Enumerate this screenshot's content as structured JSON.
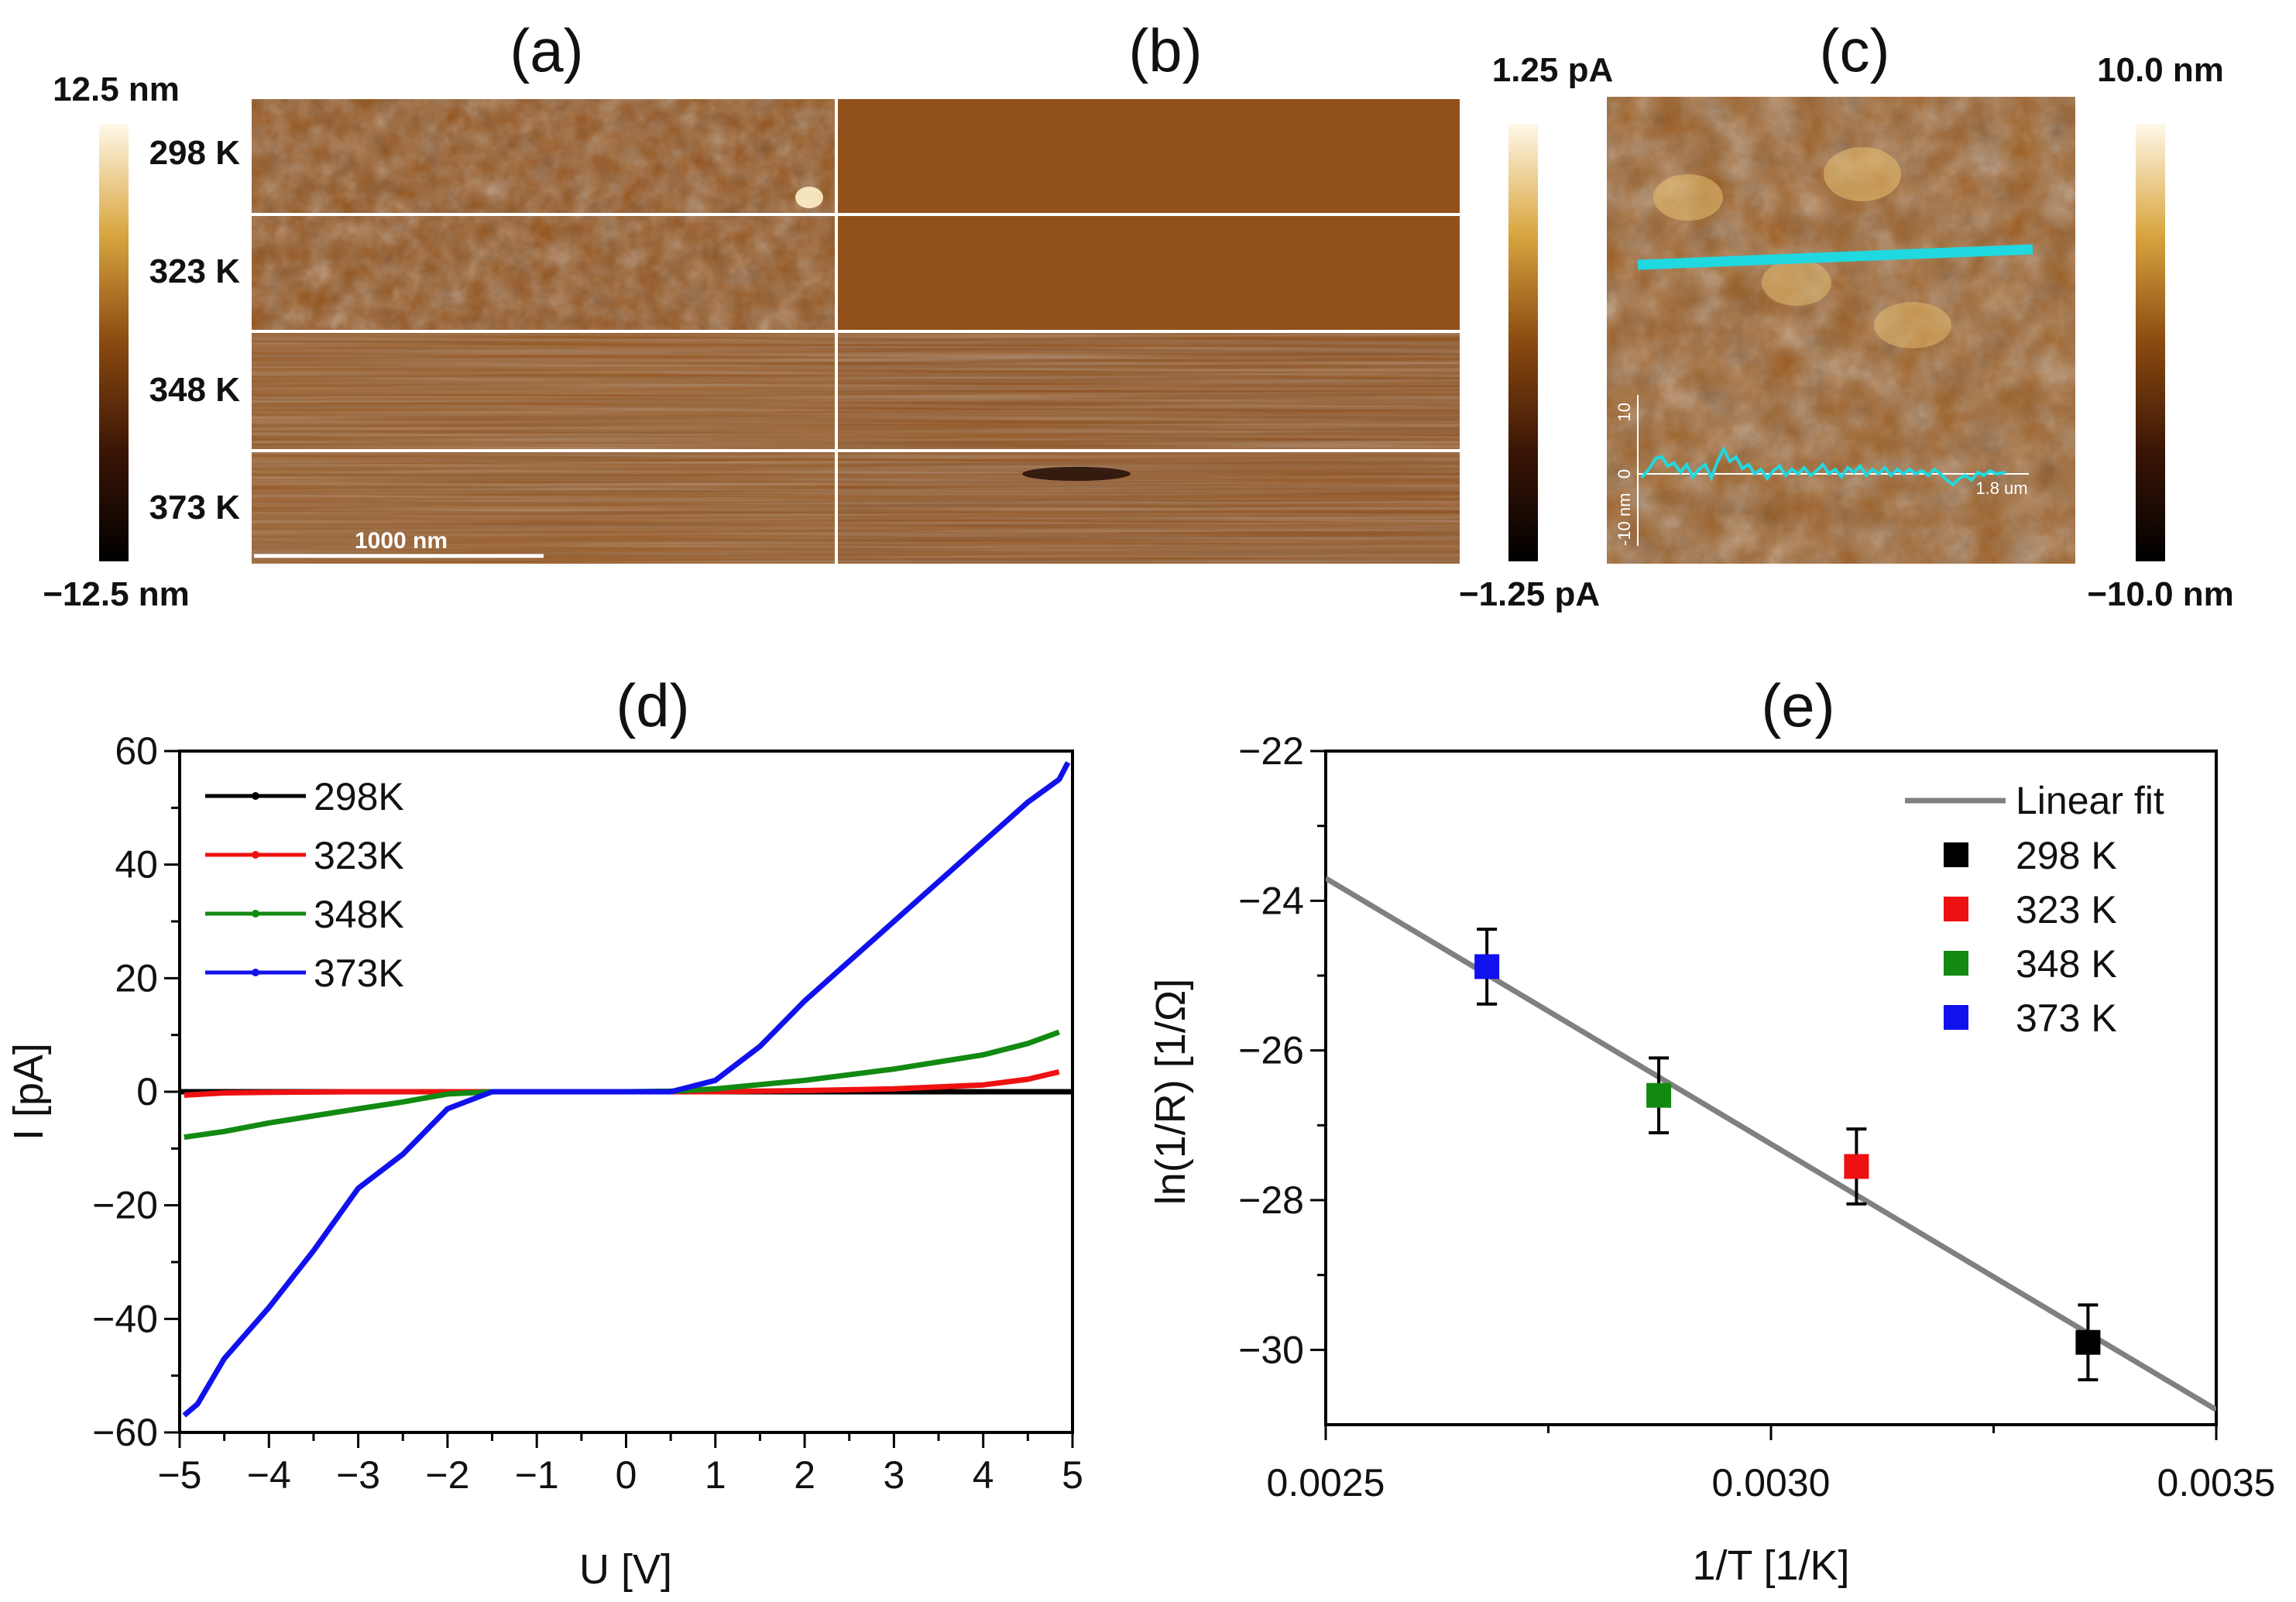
{
  "panels": {
    "a": {
      "label": "(a)",
      "scale_top": "12.5 nm",
      "scale_bottom": "−12.5 nm",
      "rows": [
        "298 K",
        "323 K",
        "348 K",
        "373 K"
      ],
      "scalebar": "1000 nm"
    },
    "b": {
      "label": "(b)",
      "scale_top": "1.25 pA",
      "scale_bottom": "−1.25 pA"
    },
    "c": {
      "label": "(c)",
      "scale_top": "10.0 nm",
      "scale_bottom": "−10.0 nm",
      "profile_top": "10",
      "profile_zero": "0",
      "profile_bottom": "-10 nm",
      "profile_length": "1.8 um"
    },
    "d": {
      "label": "(d)"
    },
    "e": {
      "label": "(e)"
    }
  },
  "colors": {
    "298K": "#000000",
    "323K": "#ee1111",
    "348K": "#128a12",
    "373K": "#1111ee",
    "fit": "#808080",
    "profile": "#20d8e0",
    "afm_mid": "#8a4a10"
  },
  "chart_data": [
    {
      "type": "line",
      "panel": "(d)",
      "xlabel": "U [V]",
      "ylabel": "I [pA]",
      "xlim": [
        -5,
        5
      ],
      "ylim": [
        -60,
        60
      ],
      "xticks": [
        "−5",
        "−4",
        "−3",
        "−2",
        "−1",
        "0",
        "1",
        "2",
        "3",
        "4",
        "5"
      ],
      "yticks": [
        "−60",
        "−40",
        "−20",
        "0",
        "20",
        "40",
        "60"
      ],
      "legend_position": "top-left",
      "series": [
        {
          "name": "298K",
          "x": [
            -5,
            0,
            5
          ],
          "y": [
            0,
            0,
            0
          ]
        },
        {
          "name": "323K",
          "x": [
            -4.95,
            -4.5,
            -4,
            -3,
            -2,
            -1,
            0,
            1,
            2,
            3,
            4,
            4.5,
            4.85
          ],
          "y": [
            -0.6,
            -0.2,
            -0.1,
            0,
            0,
            0,
            0,
            0,
            0.2,
            0.5,
            1.2,
            2.2,
            3.5
          ]
        },
        {
          "name": "348K",
          "x": [
            -4.95,
            -4.5,
            -4,
            -3,
            -2.5,
            -2,
            -1.5,
            -1,
            0,
            0.5,
            1,
            2,
            3,
            4,
            4.5,
            4.85
          ],
          "y": [
            -8,
            -7,
            -5.5,
            -3,
            -1.8,
            -0.4,
            0,
            0,
            0,
            0.1,
            0.5,
            2,
            4,
            6.5,
            8.5,
            10.5
          ]
        },
        {
          "name": "373K",
          "x": [
            -4.95,
            -4.8,
            -4.5,
            -4,
            -3.5,
            -3,
            -2.5,
            -2,
            -1.5,
            -1,
            0,
            0.5,
            1,
            1.5,
            2,
            2.5,
            3,
            3.5,
            4,
            4.5,
            4.85,
            4.95
          ],
          "y": [
            -57,
            -55,
            -47,
            -38,
            -28,
            -17,
            -11,
            -3,
            0,
            0,
            0,
            0,
            2,
            8,
            16,
            23,
            30,
            37,
            44,
            51,
            55,
            58
          ]
        }
      ]
    },
    {
      "type": "scatter",
      "panel": "(e)",
      "xlabel": "1/T [1/K]",
      "ylabel": "ln(1/R) [1/Ω]",
      "xlim": [
        0.0025,
        0.0035
      ],
      "ylim": [
        -31,
        -22
      ],
      "xticks": [
        "0.0025",
        "0.0030",
        "0.0035"
      ],
      "yticks": [
        "−22",
        "−24",
        "−26",
        "−28",
        "−30"
      ],
      "legend_position": "top-right",
      "series": [
        {
          "name": "298 K",
          "x": [
            0.003356
          ],
          "y": [
            -29.9
          ],
          "err": [
            0.5
          ]
        },
        {
          "name": "323 K",
          "x": [
            0.003096
          ],
          "y": [
            -27.55
          ],
          "err": [
            0.5
          ]
        },
        {
          "name": "348 K",
          "x": [
            0.002874
          ],
          "y": [
            -26.6
          ],
          "err": [
            0.5
          ]
        },
        {
          "name": "373 K",
          "x": [
            0.002681
          ],
          "y": [
            -24.88
          ],
          "err": [
            0.5
          ]
        }
      ],
      "fit": {
        "name": "Linear fit",
        "x": [
          0.0025,
          0.0035
        ],
        "y": [
          -23.7,
          -30.8
        ]
      }
    }
  ]
}
